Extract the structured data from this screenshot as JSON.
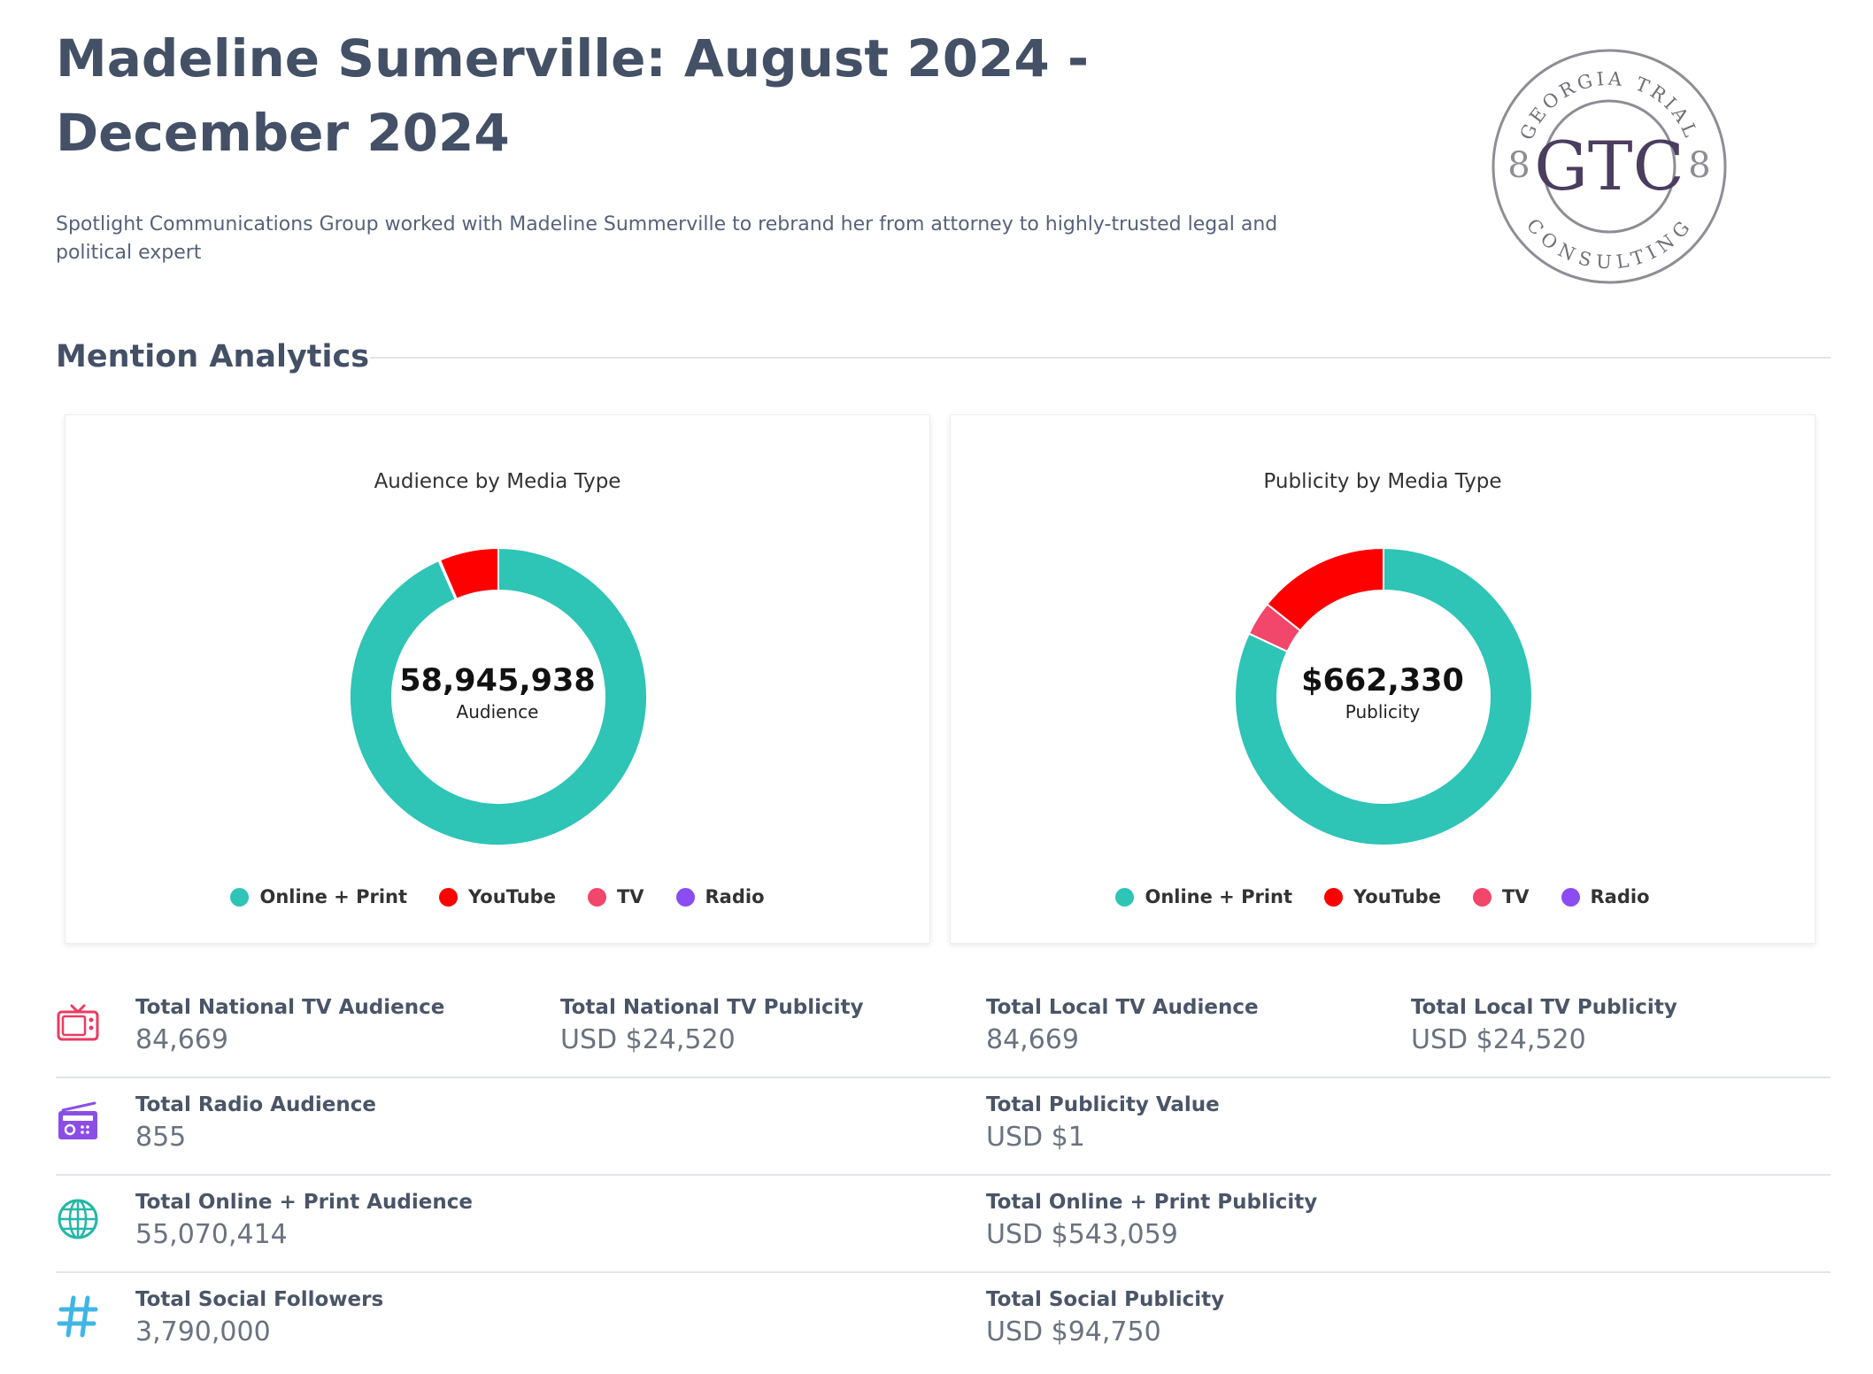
{
  "header": {
    "title": "Madeline Sumerville: August 2024 - December 2024",
    "description": "Spotlight Communications Group worked with Madeline Summerville to rebrand her from attorney to highly-trusted legal and political expert",
    "logo": {
      "initials": "GTC",
      "ring_top": "GEORGIA TRIAL",
      "ring_bottom": "CONSULTING"
    }
  },
  "section": {
    "title": "Mention Analytics"
  },
  "colors": {
    "online_print": "#2ec4b6",
    "youtube": "#ff0000",
    "tv": "#f2466a",
    "radio": "#8b4cf2",
    "icon_tv": "#ea3b62",
    "icon_radio": "#8a4ee6",
    "icon_globe": "#23b7a8",
    "icon_hash": "#3fb6e6"
  },
  "chart_data": [
    {
      "type": "pie",
      "title": "Audience by Media Type",
      "center_value": "58,945,938",
      "center_label": "Audience",
      "categories": [
        "Online + Print",
        "YouTube",
        "TV",
        "Radio"
      ],
      "values": [
        55070414,
        3790000,
        84669,
        855
      ]
    },
    {
      "type": "pie",
      "title": "Publicity by Media Type",
      "center_value": "$662,330",
      "center_label": "Publicity",
      "categories": [
        "Online + Print",
        "YouTube",
        "TV",
        "Radio"
      ],
      "values": [
        543059,
        94750,
        24520,
        1
      ]
    }
  ],
  "stats": {
    "row1": {
      "icon": "tv-icon",
      "items": [
        {
          "label": "Total National TV Audience",
          "value": "84,669"
        },
        {
          "label": "Total National TV Publicity",
          "value": "USD $24,520"
        },
        {
          "label": "Total Local TV Audience",
          "value": "84,669"
        },
        {
          "label": "Total Local TV Publicity",
          "value": "USD $24,520"
        }
      ]
    },
    "row2": {
      "icon": "radio-icon",
      "items": [
        {
          "label": "Total Radio Audience",
          "value": "855"
        },
        {
          "label": "Total Publicity Value",
          "value": "USD $1"
        }
      ]
    },
    "row3": {
      "icon": "globe-icon",
      "items": [
        {
          "label": "Total Online + Print Audience",
          "value": "55,070,414"
        },
        {
          "label": "Total Online + Print Publicity",
          "value": "USD $543,059"
        }
      ]
    },
    "row4": {
      "icon": "hashtag-icon",
      "items": [
        {
          "label": "Total Social Followers",
          "value": "3,790,000"
        },
        {
          "label": "Total Social Publicity",
          "value": "USD $94,750"
        }
      ]
    }
  }
}
